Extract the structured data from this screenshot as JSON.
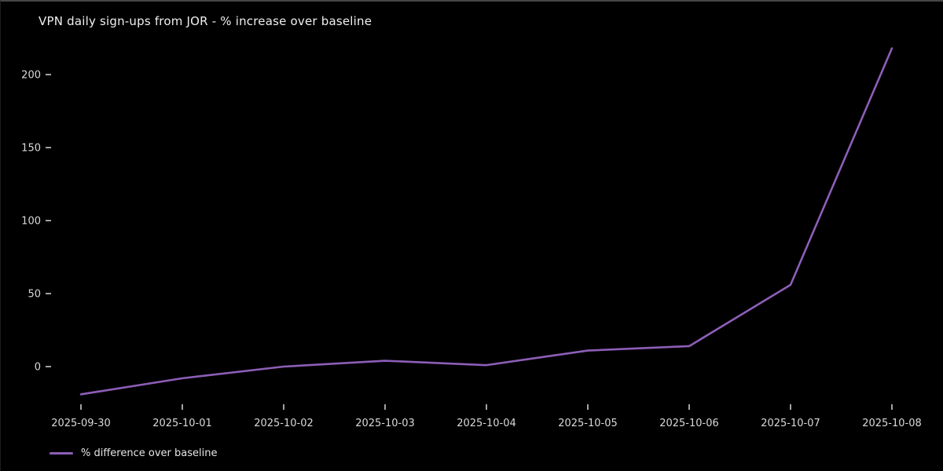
{
  "chart_data": {
    "type": "line",
    "title": "VPN daily sign-ups from JOR - % increase over baseline",
    "categories": [
      "2025-09-30",
      "2025-10-01",
      "2025-10-02",
      "2025-10-03",
      "2025-10-04",
      "2025-10-05",
      "2025-10-06",
      "2025-10-07",
      "2025-10-08"
    ],
    "series": [
      {
        "name": "% difference over baseline",
        "values": [
          -19,
          -8,
          0,
          4,
          1,
          11,
          14,
          56,
          218
        ]
      }
    ],
    "xlabel": "",
    "ylabel": "",
    "yticks": [
      0,
      50,
      100,
      150,
      200
    ],
    "ytick_labels": [
      "0",
      "50",
      "100",
      "150",
      "200"
    ],
    "ylim": [
      -30,
      230
    ],
    "grid": false,
    "legend_position": "lower-left",
    "colors": {
      "background": "#000000",
      "line": "#8d5eb7",
      "title_text": "#f0f0f0",
      "tick_text": "#d9d9d9",
      "tick_mark": "#cccccc"
    }
  }
}
